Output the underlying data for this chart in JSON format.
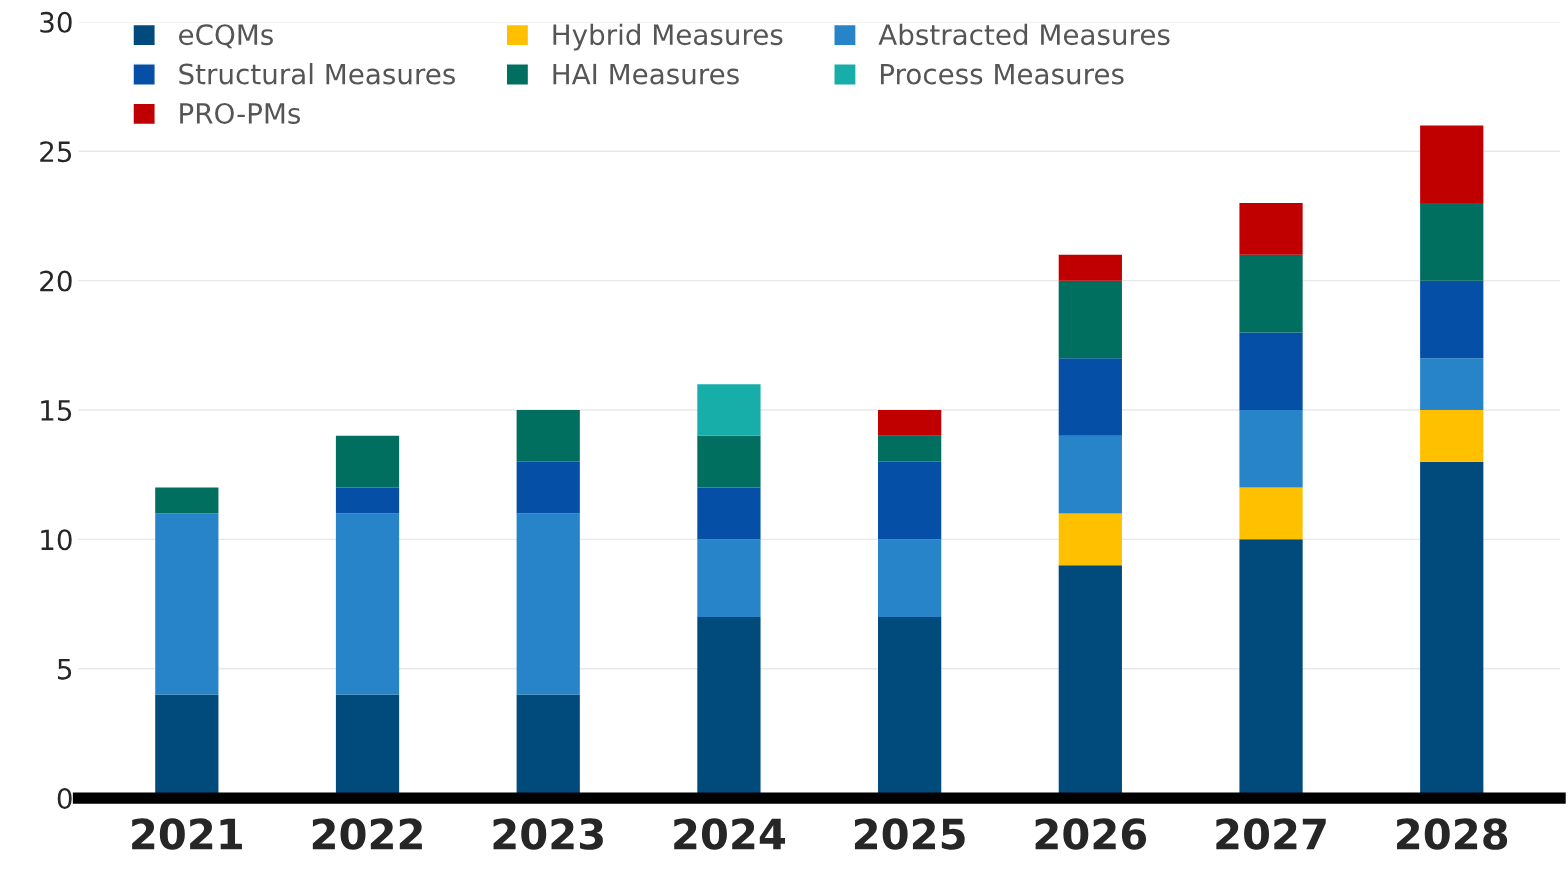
{
  "chart_data": {
    "type": "bar",
    "stacked": true,
    "categories": [
      "2021",
      "2022",
      "2023",
      "2024",
      "2025",
      "2026",
      "2027",
      "2028"
    ],
    "series": [
      {
        "name": "eCQMs",
        "color": "#004a7c",
        "values": [
          4,
          4,
          4,
          7,
          7,
          9,
          10,
          13
        ]
      },
      {
        "name": "Hybrid Measures",
        "color": "#ffc000",
        "values": [
          null,
          null,
          null,
          null,
          null,
          2,
          2,
          2
        ]
      },
      {
        "name": "Abstracted Measures",
        "color": "#2784c8",
        "values": [
          7,
          7,
          7,
          3,
          3,
          3,
          3,
          2
        ]
      },
      {
        "name": "Structural Measures",
        "color": "#0550a6",
        "values": [
          null,
          1,
          2,
          2,
          3,
          3,
          3,
          3
        ]
      },
      {
        "name": "HAI Measures",
        "color": "#006f5f",
        "values": [
          1,
          2,
          2,
          2,
          1,
          3,
          3,
          3
        ]
      },
      {
        "name": "Process Measures",
        "color": "#17ada8",
        "values": [
          null,
          null,
          null,
          2,
          null,
          null,
          null,
          null
        ]
      },
      {
        "name": "PRO-PMs",
        "color": "#c00000",
        "values": [
          null,
          null,
          null,
          null,
          1,
          1,
          2,
          3
        ]
      }
    ],
    "ylim": [
      0,
      30
    ],
    "yticks": [
      0,
      5,
      10,
      15,
      20,
      25,
      30
    ],
    "grid": "y",
    "legend": "top left"
  }
}
